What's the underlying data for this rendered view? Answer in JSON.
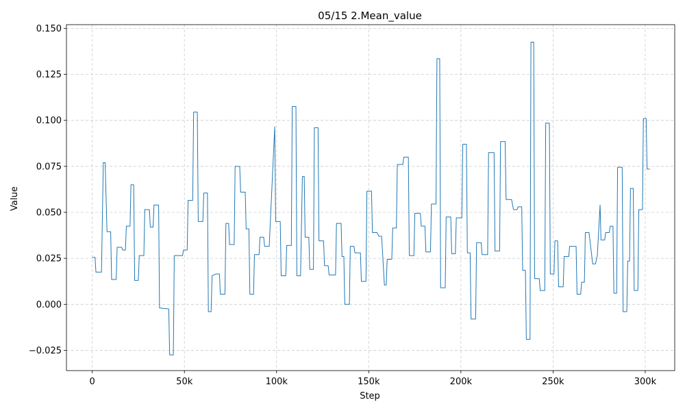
{
  "chart_data": {
    "type": "line",
    "title": "05/15  2.Mean_value",
    "xlabel": "Step",
    "ylabel": "Value",
    "xlim": [
      -14000,
      316000
    ],
    "ylim": [
      -0.036,
      0.152
    ],
    "grid": true,
    "x_ticks": [
      {
        "value": 0,
        "label": "0"
      },
      {
        "value": 50000,
        "label": "50k"
      },
      {
        "value": 100000,
        "label": "100k"
      },
      {
        "value": 150000,
        "label": "150k"
      },
      {
        "value": 200000,
        "label": "200k"
      },
      {
        "value": 250000,
        "label": "250k"
      },
      {
        "value": 300000,
        "label": "300k"
      }
    ],
    "y_ticks": [
      {
        "value": -0.025,
        "label": "−0.025"
      },
      {
        "value": 0.0,
        "label": "0.000"
      },
      {
        "value": 0.025,
        "label": "0.025"
      },
      {
        "value": 0.05,
        "label": "0.050"
      },
      {
        "value": 0.075,
        "label": "0.075"
      },
      {
        "value": 0.1,
        "label": "0.100"
      },
      {
        "value": 0.125,
        "label": "0.125"
      },
      {
        "value": 0.15,
        "label": "0.150"
      }
    ],
    "series": [
      {
        "color": "#1f77b4",
        "step": "post",
        "points": [
          [
            0,
            0.0255
          ],
          [
            1500,
            0.0255
          ],
          [
            2000,
            0.0175
          ],
          [
            5000,
            0.0175
          ],
          [
            6000,
            0.077
          ],
          [
            7000,
            0.077
          ],
          [
            8000,
            0.0395
          ],
          [
            10000,
            0.0395
          ],
          [
            10500,
            0.0135
          ],
          [
            13000,
            0.0135
          ],
          [
            13500,
            0.031
          ],
          [
            16000,
            0.031
          ],
          [
            16500,
            0.0295
          ],
          [
            18000,
            0.0295
          ],
          [
            18500,
            0.0425
          ],
          [
            20500,
            0.0425
          ],
          [
            21000,
            0.065
          ],
          [
            22500,
            0.065
          ],
          [
            23000,
            0.013
          ],
          [
            25000,
            0.013
          ],
          [
            25500,
            0.0265
          ],
          [
            28000,
            0.0265
          ],
          [
            28500,
            0.0515
          ],
          [
            31000,
            0.0515
          ],
          [
            31500,
            0.042
          ],
          [
            33000,
            0.042
          ],
          [
            33500,
            0.054
          ],
          [
            36000,
            0.054
          ],
          [
            36500,
            -0.002
          ],
          [
            41500,
            -0.0025
          ],
          [
            42000,
            -0.0275
          ],
          [
            44000,
            -0.0275
          ],
          [
            44500,
            0.0265
          ],
          [
            49000,
            0.0265
          ],
          [
            49500,
            0.0295
          ],
          [
            51500,
            0.0295
          ],
          [
            52000,
            0.0565
          ],
          [
            54500,
            0.0565
          ],
          [
            55000,
            0.1045
          ],
          [
            57000,
            0.1045
          ],
          [
            57500,
            0.045
          ],
          [
            60000,
            0.045
          ],
          [
            60500,
            0.0605
          ],
          [
            62500,
            0.0605
          ],
          [
            63000,
            -0.004
          ],
          [
            64500,
            -0.004
          ],
          [
            65000,
            0.0155
          ],
          [
            67000,
            0.0165
          ],
          [
            69000,
            0.0165
          ],
          [
            69500,
            0.0055
          ],
          [
            72000,
            0.0055
          ],
          [
            72500,
            0.044
          ],
          [
            74000,
            0.044
          ],
          [
            74500,
            0.0325
          ],
          [
            77000,
            0.0325
          ],
          [
            77500,
            0.075
          ],
          [
            80000,
            0.075
          ],
          [
            80500,
            0.061
          ],
          [
            83000,
            0.061
          ],
          [
            83500,
            0.041
          ],
          [
            85000,
            0.041
          ],
          [
            85500,
            0.0055
          ],
          [
            87500,
            0.0055
          ],
          [
            88000,
            0.027
          ],
          [
            90500,
            0.027
          ],
          [
            91000,
            0.0365
          ],
          [
            93000,
            0.0365
          ],
          [
            93500,
            0.0315
          ],
          [
            96000,
            0.0315
          ],
          [
            99000,
            0.0965
          ],
          [
            99500,
            0.045
          ],
          [
            102000,
            0.045
          ],
          [
            102500,
            0.0155
          ],
          [
            105000,
            0.0155
          ],
          [
            105500,
            0.032
          ],
          [
            108000,
            0.032
          ],
          [
            108500,
            0.1075
          ],
          [
            110500,
            0.1075
          ],
          [
            111000,
            0.0155
          ],
          [
            113000,
            0.0155
          ],
          [
            114000,
            0.0695
          ],
          [
            115000,
            0.0695
          ],
          [
            115500,
            0.0365
          ],
          [
            117500,
            0.0365
          ],
          [
            118000,
            0.019
          ],
          [
            120000,
            0.019
          ],
          [
            120500,
            0.096
          ],
          [
            122500,
            0.096
          ],
          [
            123000,
            0.0345
          ],
          [
            125500,
            0.0345
          ],
          [
            126000,
            0.021
          ],
          [
            128000,
            0.021
          ],
          [
            128500,
            0.016
          ],
          [
            132000,
            0.016
          ],
          [
            132500,
            0.044
          ],
          [
            135000,
            0.044
          ],
          [
            135500,
            0.026
          ],
          [
            136500,
            0.026
          ],
          [
            137000,
            0.0
          ],
          [
            139500,
            0.0
          ],
          [
            140000,
            0.0315
          ],
          [
            142000,
            0.0315
          ],
          [
            142500,
            0.028
          ],
          [
            145500,
            0.028
          ],
          [
            146000,
            0.0125
          ],
          [
            148500,
            0.0125
          ],
          [
            149000,
            0.0615
          ],
          [
            151500,
            0.0615
          ],
          [
            152000,
            0.039
          ],
          [
            154500,
            0.039
          ],
          [
            155500,
            0.037
          ],
          [
            157000,
            0.037
          ],
          [
            158500,
            0.0105
          ],
          [
            159500,
            0.0105
          ],
          [
            160000,
            0.0245
          ],
          [
            162500,
            0.0245
          ],
          [
            163000,
            0.0415
          ],
          [
            165000,
            0.0415
          ],
          [
            165500,
            0.076
          ],
          [
            168500,
            0.076
          ],
          [
            169000,
            0.08
          ],
          [
            171500,
            0.08
          ],
          [
            172000,
            0.0265
          ],
          [
            174500,
            0.0265
          ],
          [
            175000,
            0.0495
          ],
          [
            178000,
            0.0495
          ],
          [
            178500,
            0.0425
          ],
          [
            180500,
            0.0425
          ],
          [
            181000,
            0.0285
          ],
          [
            183500,
            0.0285
          ],
          [
            184000,
            0.0545
          ],
          [
            186500,
            0.0545
          ],
          [
            187000,
            0.1335
          ],
          [
            188500,
            0.1335
          ],
          [
            189000,
            0.009
          ],
          [
            191500,
            0.009
          ],
          [
            192000,
            0.0475
          ],
          [
            194500,
            0.0475
          ],
          [
            195000,
            0.0275
          ],
          [
            197000,
            0.0275
          ],
          [
            197500,
            0.047
          ],
          [
            200500,
            0.047
          ],
          [
            201000,
            0.087
          ],
          [
            203000,
            0.087
          ],
          [
            203500,
            0.028
          ],
          [
            205000,
            0.028
          ],
          [
            205500,
            -0.008
          ],
          [
            208000,
            -0.008
          ],
          [
            208500,
            0.0335
          ],
          [
            211000,
            0.0335
          ],
          [
            211500,
            0.027
          ],
          [
            214500,
            0.027
          ],
          [
            215000,
            0.0825
          ],
          [
            218000,
            0.0825
          ],
          [
            218500,
            0.029
          ],
          [
            221000,
            0.029
          ],
          [
            221500,
            0.0885
          ],
          [
            224000,
            0.0885
          ],
          [
            224500,
            0.057
          ],
          [
            227500,
            0.057
          ],
          [
            228500,
            0.0515
          ],
          [
            230500,
            0.0515
          ],
          [
            231000,
            0.053
          ],
          [
            233000,
            0.053
          ],
          [
            233500,
            0.0185
          ],
          [
            235000,
            0.0185
          ],
          [
            235500,
            -0.019
          ],
          [
            237500,
            -0.019
          ],
          [
            238000,
            0.1425
          ],
          [
            239500,
            0.1425
          ],
          [
            240000,
            0.014
          ],
          [
            242500,
            0.014
          ],
          [
            243000,
            0.0075
          ],
          [
            245500,
            0.0075
          ],
          [
            246000,
            0.0985
          ],
          [
            248000,
            0.0985
          ],
          [
            248500,
            0.0165
          ],
          [
            250500,
            0.0165
          ],
          [
            251000,
            0.0345
          ],
          [
            252500,
            0.0345
          ],
          [
            253000,
            0.0095
          ],
          [
            255500,
            0.0095
          ],
          [
            256000,
            0.026
          ],
          [
            258500,
            0.026
          ],
          [
            259000,
            0.0315
          ],
          [
            262500,
            0.0315
          ],
          [
            263000,
            0.0055
          ],
          [
            265000,
            0.0055
          ],
          [
            265500,
            0.012
          ],
          [
            267000,
            0.012
          ],
          [
            267500,
            0.039
          ],
          [
            269500,
            0.039
          ],
          [
            271500,
            0.022
          ],
          [
            273000,
            0.022
          ],
          [
            274000,
            0.0265
          ],
          [
            275500,
            0.054
          ],
          [
            276000,
            0.035
          ],
          [
            278000,
            0.035
          ],
          [
            278500,
            0.039
          ],
          [
            280500,
            0.039
          ],
          [
            281000,
            0.0425
          ],
          [
            282500,
            0.0425
          ],
          [
            283000,
            0.006
          ],
          [
            284500,
            0.006
          ],
          [
            285000,
            0.0745
          ],
          [
            287500,
            0.0745
          ],
          [
            288000,
            -0.004
          ],
          [
            290000,
            -0.004
          ],
          [
            290500,
            0.0235
          ],
          [
            291500,
            0.0235
          ],
          [
            292000,
            0.063
          ],
          [
            293500,
            0.063
          ],
          [
            294000,
            0.0075
          ],
          [
            296000,
            0.0075
          ],
          [
            296500,
            0.0515
          ],
          [
            298500,
            0.0515
          ],
          [
            299000,
            0.101
          ],
          [
            300500,
            0.101
          ],
          [
            301000,
            0.0735
          ],
          [
            302500,
            0.0735
          ]
        ]
      }
    ]
  }
}
